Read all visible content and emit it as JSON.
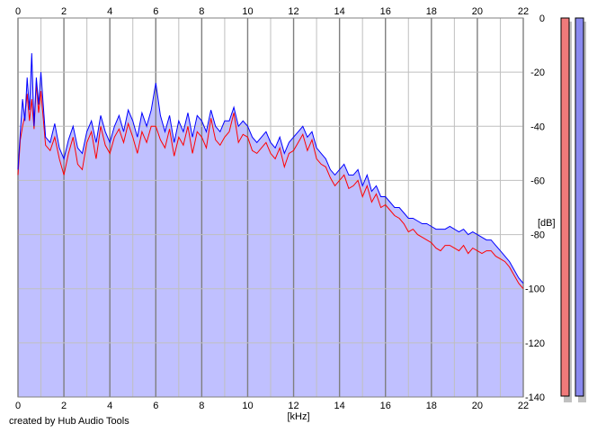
{
  "footer": {
    "credit": "created by Hub Audio Tools"
  },
  "colors": {
    "background": "#ffffff",
    "fill": "#c0c0ff",
    "grid_major": "#7f7f7f",
    "grid_minor": "#bfbfbf",
    "left_channel": "#ff0000",
    "right_channel": "#0000ff",
    "meter_left": "#f07a7a",
    "meter_right": "#8a8aef",
    "meter_shadow": "#c0c0c0"
  },
  "chart_data": {
    "type": "area",
    "title": "",
    "xlabel": "[kHz]",
    "ylabel": "[dB]",
    "xlim": [
      0,
      22
    ],
    "ylim": [
      -140,
      0
    ],
    "x_ticks": [
      "0",
      "2",
      "4",
      "6",
      "8",
      "10",
      "12",
      "14",
      "16",
      "18",
      "20",
      "22"
    ],
    "y_ticks": [
      "0",
      "-20",
      "-40",
      "-60",
      "-80",
      "-100",
      "-120",
      "-140"
    ],
    "grid": true,
    "legend": "none",
    "series": [
      {
        "values_note": "",
        "color": "#ff0000",
        "x": [
          0,
          0.1,
          0.2,
          0.3,
          0.4,
          0.5,
          0.6,
          0.7,
          0.8,
          0.9,
          1.0,
          1.2,
          1.4,
          1.6,
          1.8,
          2.0,
          2.2,
          2.4,
          2.6,
          2.8,
          3.0,
          3.2,
          3.4,
          3.6,
          3.8,
          4.0,
          4.2,
          4.4,
          4.6,
          4.8,
          5.0,
          5.2,
          5.4,
          5.6,
          5.8,
          6.0,
          6.2,
          6.4,
          6.6,
          6.8,
          7.0,
          7.2,
          7.4,
          7.6,
          7.8,
          8.0,
          8.2,
          8.4,
          8.6,
          8.8,
          9.0,
          9.2,
          9.4,
          9.6,
          9.8,
          10.0,
          10.2,
          10.4,
          10.6,
          10.8,
          11.0,
          11.2,
          11.4,
          11.6,
          11.8,
          12.0,
          12.2,
          12.4,
          12.6,
          12.8,
          13.0,
          13.2,
          13.4,
          13.6,
          13.8,
          14.0,
          14.2,
          14.4,
          14.6,
          14.8,
          15.0,
          15.2,
          15.4,
          15.6,
          15.8,
          16.0,
          16.2,
          16.4,
          16.6,
          16.8,
          17.0,
          17.2,
          17.4,
          17.6,
          17.8,
          18.0,
          18.2,
          18.4,
          18.6,
          18.8,
          19.0,
          19.2,
          19.4,
          19.6,
          19.8,
          20.0,
          20.2,
          20.4,
          20.6,
          20.8,
          21.0,
          21.2,
          21.4,
          21.6,
          21.8,
          22.0
        ],
        "values": [
          -58,
          -45,
          -40,
          -36,
          -28,
          -38,
          -30,
          -41,
          -24,
          -35,
          -27,
          -47,
          -49,
          -44,
          -52,
          -58,
          -50,
          -44,
          -54,
          -56,
          -46,
          -42,
          -52,
          -40,
          -47,
          -50,
          -44,
          -41,
          -46,
          -39,
          -44,
          -50,
          -42,
          -46,
          -40,
          -40,
          -45,
          -48,
          -41,
          -51,
          -44,
          -47,
          -40,
          -50,
          -42,
          -44,
          -48,
          -37,
          -45,
          -47,
          -44,
          -42,
          -35,
          -46,
          -43,
          -44,
          -49,
          -50,
          -48,
          -46,
          -50,
          -52,
          -48,
          -55,
          -50,
          -49,
          -46,
          -43,
          -49,
          -45,
          -52,
          -54,
          -55,
          -59,
          -62,
          -60,
          -58,
          -63,
          -62,
          -60,
          -66,
          -62,
          -68,
          -65,
          -70,
          -69,
          -71,
          -73,
          -74,
          -76,
          -79,
          -78,
          -80,
          -81,
          -82,
          -83,
          -85,
          -86,
          -84,
          -84,
          -85,
          -86,
          -84,
          -87,
          -85,
          -86,
          -87,
          -86,
          -86,
          -88,
          -89,
          -90,
          -92,
          -95,
          -98,
          -100
        ]
      },
      {
        "values_note": "",
        "color": "#0000ff",
        "x": [
          0,
          0.1,
          0.2,
          0.3,
          0.4,
          0.5,
          0.6,
          0.7,
          0.8,
          0.9,
          1.0,
          1.2,
          1.4,
          1.6,
          1.8,
          2.0,
          2.2,
          2.4,
          2.6,
          2.8,
          3.0,
          3.2,
          3.4,
          3.6,
          3.8,
          4.0,
          4.2,
          4.4,
          4.6,
          4.8,
          5.0,
          5.2,
          5.4,
          5.6,
          5.8,
          6.0,
          6.2,
          6.4,
          6.6,
          6.8,
          7.0,
          7.2,
          7.4,
          7.6,
          7.8,
          8.0,
          8.2,
          8.4,
          8.6,
          8.8,
          9.0,
          9.2,
          9.4,
          9.6,
          9.8,
          10.0,
          10.2,
          10.4,
          10.6,
          10.8,
          11.0,
          11.2,
          11.4,
          11.6,
          11.8,
          12.0,
          12.2,
          12.4,
          12.6,
          12.8,
          13.0,
          13.2,
          13.4,
          13.6,
          13.8,
          14.0,
          14.2,
          14.4,
          14.6,
          14.8,
          15.0,
          15.2,
          15.4,
          15.6,
          15.8,
          16.0,
          16.2,
          16.4,
          16.6,
          16.8,
          17.0,
          17.2,
          17.4,
          17.6,
          17.8,
          18.0,
          18.2,
          18.4,
          18.6,
          18.8,
          19.0,
          19.2,
          19.4,
          19.6,
          19.8,
          20.0,
          20.2,
          20.4,
          20.6,
          20.8,
          21.0,
          21.2,
          21.4,
          21.6,
          21.8,
          22.0
        ],
        "values": [
          -56,
          -42,
          -30,
          -38,
          -22,
          -34,
          -13,
          -40,
          -22,
          -32,
          -20,
          -44,
          -46,
          -39,
          -48,
          -52,
          -45,
          -40,
          -48,
          -50,
          -42,
          -38,
          -46,
          -36,
          -42,
          -46,
          -40,
          -36,
          -42,
          -34,
          -38,
          -44,
          -35,
          -40,
          -34,
          -24,
          -36,
          -42,
          -36,
          -46,
          -38,
          -42,
          -35,
          -44,
          -36,
          -38,
          -42,
          -34,
          -40,
          -42,
          -38,
          -38,
          -33,
          -40,
          -38,
          -40,
          -44,
          -46,
          -44,
          -42,
          -46,
          -48,
          -44,
          -50,
          -46,
          -44,
          -42,
          -40,
          -44,
          -42,
          -48,
          -50,
          -52,
          -56,
          -58,
          -56,
          -54,
          -58,
          -58,
          -56,
          -62,
          -58,
          -64,
          -62,
          -66,
          -66,
          -68,
          -70,
          -70,
          -72,
          -74,
          -74,
          -75,
          -76,
          -76,
          -77,
          -78,
          -78,
          -78,
          -77,
          -78,
          -79,
          -78,
          -80,
          -79,
          -80,
          -81,
          -82,
          -82,
          -84,
          -86,
          -88,
          -90,
          -93,
          -96,
          -98
        ]
      }
    ]
  }
}
